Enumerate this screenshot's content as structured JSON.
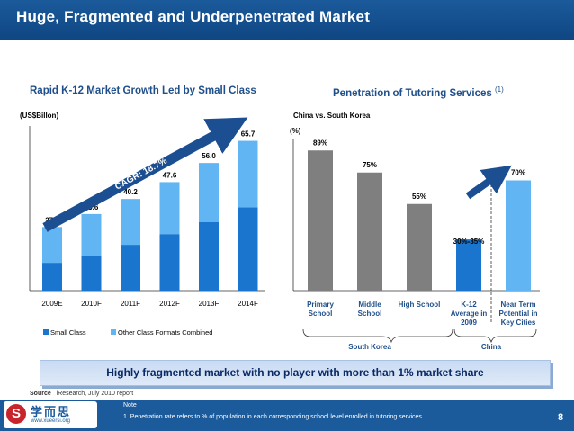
{
  "header": {
    "title": "Huge, Fragmented and Underpenetrated Market"
  },
  "left": {
    "title": "Rapid K-12 Market Growth Led by Small Class",
    "unit": "(US$Billon)",
    "cagr": "CAGR: 18.7%"
  },
  "right": {
    "title": "Penetration of Tutoring Services",
    "title_sup": "(1)",
    "subtitle": "China vs. South Korea",
    "unit": "(%)",
    "group_south_korea": "South Korea",
    "group_china": "China"
  },
  "banner": {
    "text": "Highly fragmented market with no player with more than 1% market share"
  },
  "source": {
    "label": "Source",
    "text": "iResearch, July 2010 report"
  },
  "footer": {
    "logo_cn": "学而思",
    "logo_url": "www.xueersi.org",
    "note_title": "Note",
    "note_text": "1. Penetration rate refers to % of population in each corresponding school level enrolled in tutoring services",
    "page": "8"
  },
  "colors": {
    "dark_blue": "#1a75cf",
    "light_blue": "#61b5f2",
    "header": "#1b5a9b",
    "title_text": "#1f4f8a"
  },
  "chart_data": [
    {
      "type": "bar",
      "stacked": true,
      "categories": [
        "2009E",
        "2010F",
        "2011F",
        "2012F",
        "2013F",
        "2014F"
      ],
      "totals": [
        27.9,
        33.6,
        40.2,
        47.6,
        56.0,
        65.7
      ],
      "total_labels": [
        "27.9",
        "33.6",
        "40.2",
        "47.6",
        "56.0",
        "65.7"
      ],
      "series": [
        {
          "name": "Small Class",
          "values": [
            12.2,
            15.3,
            20.1,
            24.8,
            30.0,
            36.5
          ]
        },
        {
          "name": "Other Class Formats Combined",
          "values": [
            15.7,
            18.3,
            20.1,
            22.8,
            26.0,
            29.2
          ]
        }
      ],
      "annotation": "CAGR: 18.7%",
      "ylim": [
        0,
        75
      ],
      "grid": false,
      "legend": "bottom"
    },
    {
      "type": "bar",
      "categories": [
        [
          "Primary",
          "School"
        ],
        [
          "Middle",
          "School"
        ],
        [
          "High School"
        ],
        [
          "K-12",
          "Average in",
          "2009"
        ],
        [
          "Near Term",
          "Potential in",
          "Key Cities"
        ]
      ],
      "values": [
        89,
        75,
        55,
        32.5,
        70
      ],
      "value_labels": [
        "89%",
        "75%",
        "55%",
        "30%-35%",
        "70%"
      ],
      "ylim": [
        0,
        100
      ],
      "grid": false
    }
  ]
}
